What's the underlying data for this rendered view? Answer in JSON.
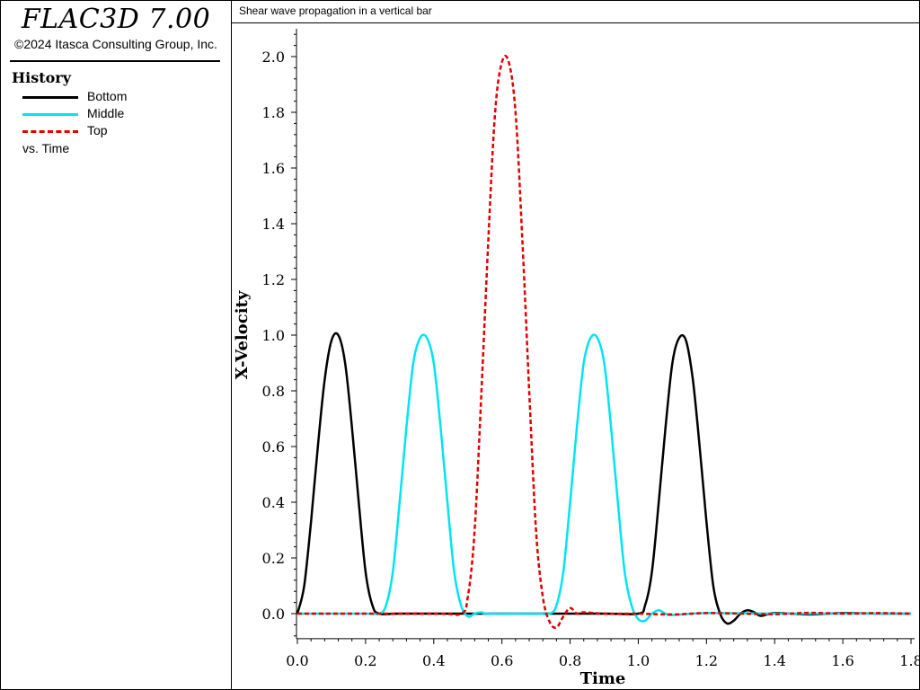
{
  "app": {
    "title": "FLAC3D 7.00",
    "copyright": "©2024 Itasca Consulting Group, Inc."
  },
  "legend": {
    "heading": "History",
    "items": [
      {
        "label": "Bottom",
        "color": "#000000",
        "style": "solid"
      },
      {
        "label": "Middle",
        "color": "#00e5ee",
        "style": "solid"
      },
      {
        "label": "Top",
        "color": "#e00000",
        "style": "dashed"
      }
    ],
    "vs_label": "vs. Time"
  },
  "chart_data": {
    "type": "line",
    "title": "Shear wave propagation in a vertical bar",
    "xlabel": "Time",
    "ylabel": "X-Velocity",
    "xlim": [
      0.0,
      1.8
    ],
    "ylim": [
      -0.09,
      2.1
    ],
    "xticks": [
      "0.0",
      "0.2",
      "0.4",
      "0.6",
      "0.8",
      "1.0",
      "1.2",
      "1.4",
      "1.6",
      "1.8"
    ],
    "yticks": [
      "0.0",
      "0.2",
      "0.4",
      "0.6",
      "0.8",
      "1.0",
      "1.2",
      "1.4",
      "1.6",
      "1.8",
      "2.0"
    ],
    "grid": false,
    "series": [
      {
        "name": "Bottom",
        "color": "#000000",
        "style": "solid",
        "x": [
          0.0,
          0.02,
          0.04,
          0.06,
          0.08,
          0.1,
          0.12,
          0.14,
          0.16,
          0.18,
          0.2,
          0.22,
          0.24,
          0.3,
          0.5,
          0.7,
          0.9,
          1.0,
          1.02,
          1.04,
          1.06,
          1.08,
          1.1,
          1.12,
          1.14,
          1.16,
          1.18,
          1.2,
          1.22,
          1.24,
          1.26,
          1.28,
          1.3,
          1.32,
          1.34,
          1.36,
          1.4,
          1.5,
          1.6,
          1.7,
          1.8
        ],
        "y": [
          0.0,
          0.1,
          0.33,
          0.6,
          0.84,
          0.98,
          1.0,
          0.9,
          0.67,
          0.4,
          0.15,
          0.03,
          0.0,
          0.0,
          0.0,
          0.0,
          0.0,
          0.0,
          0.03,
          0.15,
          0.4,
          0.67,
          0.9,
          0.99,
          0.98,
          0.84,
          0.6,
          0.33,
          0.1,
          0.0,
          -0.035,
          -0.025,
          0.0,
          0.012,
          0.005,
          -0.008,
          0.002,
          -0.003,
          0.002,
          0.0,
          0.0
        ]
      },
      {
        "name": "Middle",
        "color": "#00e5ee",
        "style": "solid",
        "x": [
          0.0,
          0.2,
          0.24,
          0.26,
          0.28,
          0.3,
          0.32,
          0.34,
          0.36,
          0.38,
          0.4,
          0.42,
          0.44,
          0.46,
          0.48,
          0.5,
          0.52,
          0.54,
          0.56,
          0.7,
          0.74,
          0.76,
          0.78,
          0.8,
          0.82,
          0.84,
          0.86,
          0.88,
          0.9,
          0.92,
          0.94,
          0.96,
          0.98,
          1.0,
          1.02,
          1.04,
          1.06,
          1.08,
          1.1,
          1.2,
          1.4,
          1.6,
          1.8
        ],
        "y": [
          0.0,
          0.0,
          0.0,
          0.03,
          0.15,
          0.4,
          0.67,
          0.9,
          0.99,
          0.99,
          0.9,
          0.67,
          0.4,
          0.15,
          0.03,
          -0.01,
          0.0,
          0.005,
          0.0,
          0.0,
          0.0,
          0.03,
          0.15,
          0.4,
          0.67,
          0.9,
          0.99,
          0.99,
          0.9,
          0.67,
          0.4,
          0.15,
          0.03,
          -0.02,
          -0.025,
          0.0,
          0.012,
          0.0,
          -0.005,
          0.002,
          0.0,
          0.0,
          0.0
        ]
      },
      {
        "name": "Top",
        "color": "#e00000",
        "style": "dashed",
        "x": [
          0.0,
          0.4,
          0.48,
          0.5,
          0.52,
          0.54,
          0.56,
          0.58,
          0.6,
          0.62,
          0.64,
          0.66,
          0.68,
          0.7,
          0.72,
          0.74,
          0.76,
          0.78,
          0.8,
          0.82,
          0.84,
          0.9,
          1.0,
          1.1,
          1.2,
          1.3,
          1.4,
          1.5,
          1.6,
          1.7,
          1.8
        ],
        "y": [
          0.0,
          0.0,
          0.0,
          0.06,
          0.3,
          0.8,
          1.34,
          1.8,
          1.98,
          1.98,
          1.8,
          1.34,
          0.8,
          0.3,
          0.06,
          -0.03,
          -0.05,
          -0.01,
          0.02,
          0.0,
          0.005,
          0.0,
          0.0,
          -0.003,
          0.002,
          0.0,
          -0.002,
          0.003,
          0.0,
          0.002,
          0.0
        ]
      }
    ]
  }
}
